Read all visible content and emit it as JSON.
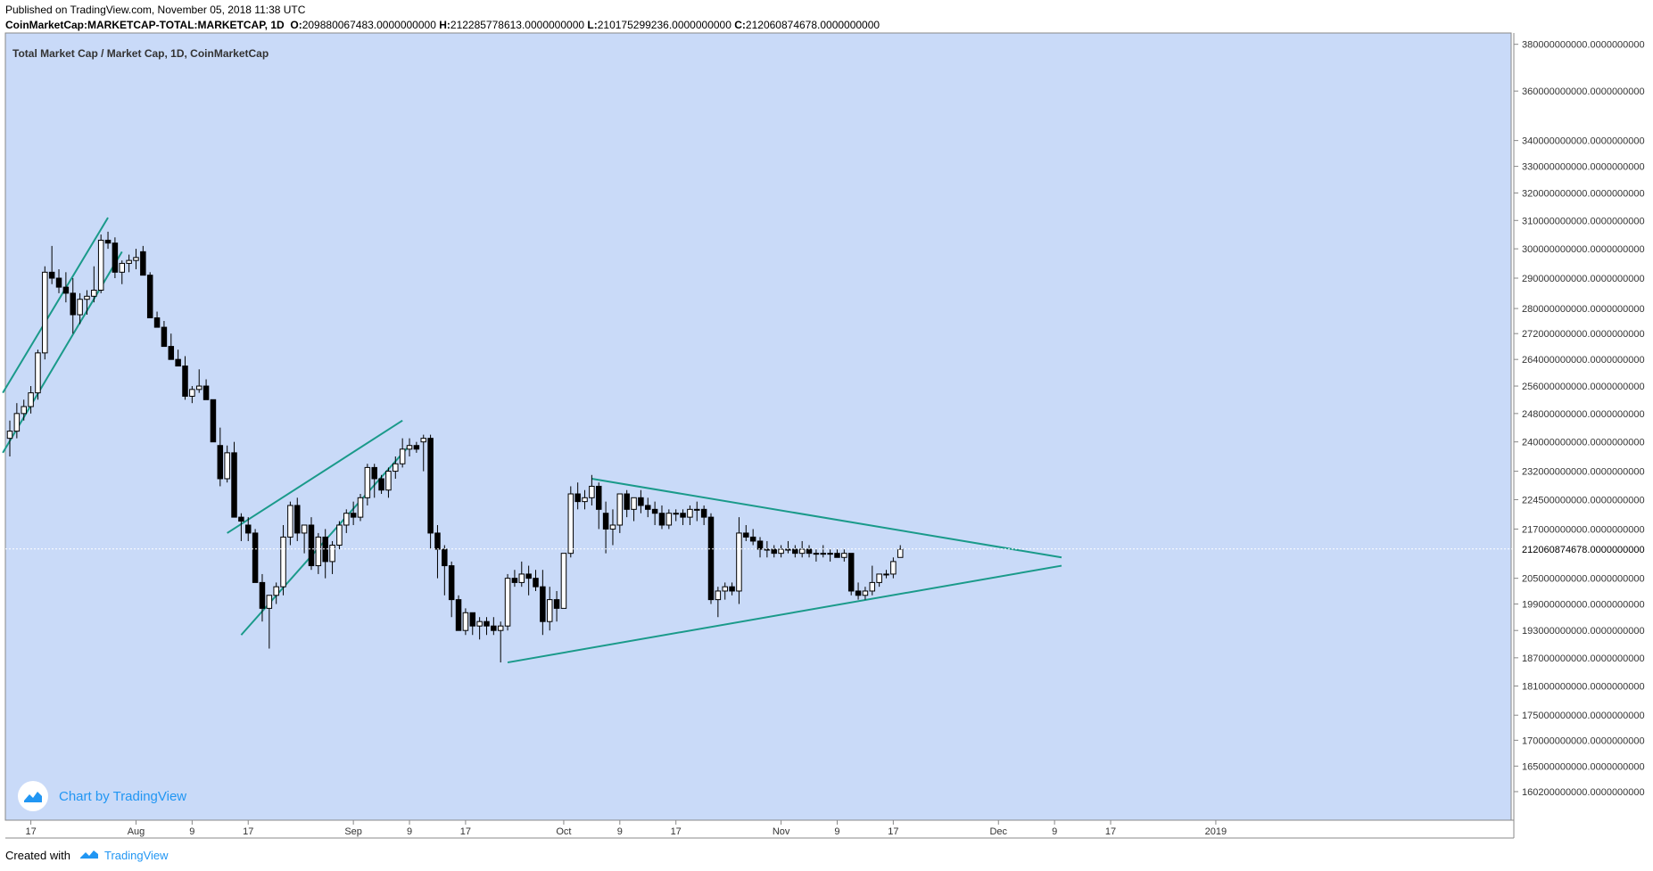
{
  "header": {
    "published": "Published on TradingView.com, November 05, 2018 11:38 UTC",
    "symbol": "CoinMarketCap:MARKETCAP-TOTAL:MARKETCAP, 1D",
    "open_label": "O:",
    "open": "209880067483.0000000000",
    "high_label": "H:",
    "high": "212285778613.0000000000",
    "low_label": "L:",
    "low": "210175299236.0000000000",
    "close_label": "C:",
    "close": "212060874678.0000000000"
  },
  "watermark": {
    "text": "Chart by TradingView",
    "icon": "tradingview-logo-icon"
  },
  "footer": {
    "created_with": "Created with",
    "brand": "TradingView",
    "icon": "tradingview-logo-icon"
  },
  "colors": {
    "background": "#c9daf8",
    "trendline": "#1a9a8a",
    "up_body": "#ffffff",
    "down_body": "#000000",
    "accent": "#2196f3"
  },
  "chart_data": {
    "type": "candlestick",
    "title": "Total Market Cap / Market Cap, 1D, CoinMarketCap",
    "x_labels": [
      "17",
      "Aug",
      "9",
      "17",
      "Sep",
      "9",
      "17",
      "Oct",
      "9",
      "17",
      "Nov",
      "9",
      "17",
      "Dec",
      "9",
      "17",
      "2019"
    ],
    "y_labels": [
      "380000000000.0000000000",
      "360000000000.0000000000",
      "340000000000.0000000000",
      "330000000000.0000000000",
      "320000000000.0000000000",
      "310000000000.0000000000",
      "300000000000.0000000000",
      "290000000000.0000000000",
      "280000000000.0000000000",
      "272000000000.0000000000",
      "264000000000.0000000000",
      "256000000000.0000000000",
      "248000000000.0000000000",
      "240000000000.0000000000",
      "232000000000.0000000000",
      "224500000000.0000000000",
      "217000000000.0000000000",
      "205000000000.0000000000",
      "199000000000.0000000000",
      "193000000000.0000000000",
      "187000000000.0000000000",
      "181000000000.0000000000",
      "175000000000.0000000000",
      "170000000000.0000000000",
      "165000000000.0000000000",
      "160200000000.0000000000"
    ],
    "last_price_label": "212060874678.0000000000",
    "log_scale": true,
    "ylim": [
      155000000000,
      385000000000
    ],
    "candles": [
      [
        241,
        246,
        236,
        243
      ],
      [
        243,
        251,
        241,
        248
      ],
      [
        248,
        252,
        246,
        250
      ],
      [
        250,
        256,
        248,
        254
      ],
      [
        254,
        267,
        252,
        266
      ],
      [
        266,
        294,
        264,
        292
      ],
      [
        292,
        301,
        288,
        290
      ],
      [
        290,
        293,
        285,
        287
      ],
      [
        287,
        292,
        282,
        285
      ],
      [
        285,
        290,
        272,
        278
      ],
      [
        278,
        285,
        275,
        283
      ],
      [
        283,
        286,
        278,
        284
      ],
      [
        284,
        294,
        282,
        286
      ],
      [
        286,
        305,
        285,
        303
      ],
      [
        303,
        306,
        300,
        302
      ],
      [
        302,
        304,
        290,
        292
      ],
      [
        292,
        296,
        288,
        295
      ],
      [
        295,
        298,
        292,
        296
      ],
      [
        296,
        300,
        293,
        297
      ],
      [
        299,
        301,
        292,
        291
      ],
      [
        291,
        292,
        280,
        277
      ],
      [
        277,
        279,
        274,
        274
      ],
      [
        274,
        276,
        268,
        268
      ],
      [
        268,
        272,
        264,
        264
      ],
      [
        264,
        267,
        262,
        262
      ],
      [
        262,
        265,
        252,
        253
      ],
      [
        253,
        256,
        251,
        255
      ],
      [
        255,
        261,
        254,
        256
      ],
      [
        256,
        258,
        252,
        252
      ],
      [
        252,
        252,
        242,
        240
      ],
      [
        239,
        244,
        228,
        230
      ],
      [
        230,
        239,
        229,
        237
      ],
      [
        237,
        240,
        223,
        220
      ],
      [
        220,
        221,
        214,
        219
      ],
      [
        218,
        220,
        214,
        216
      ],
      [
        216,
        217,
        207,
        204
      ],
      [
        204,
        206,
        195,
        198
      ],
      [
        198,
        199,
        189,
        201
      ],
      [
        201,
        204,
        199,
        203
      ],
      [
        203,
        218,
        201,
        215
      ],
      [
        215,
        224,
        213,
        223
      ],
      [
        223,
        225,
        214,
        216
      ],
      [
        216,
        218,
        211,
        218
      ],
      [
        218,
        220,
        207,
        208
      ],
      [
        208,
        216,
        206,
        215
      ],
      [
        215,
        217,
        205,
        209
      ],
      [
        209,
        214,
        206,
        213
      ],
      [
        213,
        219,
        212,
        218
      ],
      [
        218,
        222,
        216,
        221
      ],
      [
        221,
        224,
        218,
        220
      ],
      [
        220,
        226,
        219,
        225
      ],
      [
        225,
        234,
        223,
        233
      ],
      [
        233,
        234,
        225,
        230
      ],
      [
        230,
        231,
        226,
        227
      ],
      [
        227,
        233,
        225,
        232
      ],
      [
        232,
        236,
        230,
        234
      ],
      [
        234,
        241,
        233,
        238
      ],
      [
        238,
        241,
        236,
        239
      ],
      [
        239,
        240,
        237,
        238
      ],
      [
        240,
        242,
        232,
        241
      ],
      [
        241,
        242,
        212,
        216
      ],
      [
        216,
        218,
        205,
        212
      ],
      [
        212,
        213,
        201,
        208
      ],
      [
        208,
        209,
        196,
        200
      ],
      [
        200,
        201,
        193,
        193
      ],
      [
        193,
        198,
        192,
        197
      ],
      [
        197,
        197,
        192,
        194
      ],
      [
        194,
        196,
        191,
        195
      ],
      [
        195,
        196,
        192,
        194
      ],
      [
        194,
        196,
        192,
        193
      ],
      [
        193,
        195,
        186,
        194
      ],
      [
        194,
        206,
        193,
        205
      ],
      [
        205,
        207,
        203,
        204
      ],
      [
        204,
        209,
        203,
        206
      ],
      [
        206,
        208,
        201,
        205
      ],
      [
        205,
        207,
        202,
        203
      ],
      [
        203,
        207,
        192,
        195
      ],
      [
        195,
        203,
        193,
        200
      ],
      [
        200,
        202,
        195,
        198
      ],
      [
        198,
        211,
        198,
        211
      ],
      [
        211,
        228,
        210,
        226
      ],
      [
        226,
        229,
        222,
        224
      ],
      [
        224,
        227,
        222,
        225
      ],
      [
        225,
        231,
        223,
        228
      ],
      [
        228,
        229,
        217,
        222
      ],
      [
        221,
        224,
        211,
        217
      ],
      [
        217,
        222,
        213,
        218
      ],
      [
        218,
        226,
        216,
        226
      ],
      [
        226,
        227,
        220,
        222
      ],
      [
        222,
        225,
        219,
        225
      ],
      [
        225,
        227,
        221,
        223
      ],
      [
        223,
        225,
        220,
        222
      ],
      [
        222,
        224,
        218,
        221
      ],
      [
        221,
        223,
        217,
        218
      ],
      [
        218,
        222,
        217,
        221
      ],
      [
        221,
        222,
        219,
        221
      ],
      [
        221,
        222,
        218,
        220
      ],
      [
        220,
        223,
        218,
        222
      ],
      [
        222,
        224,
        219,
        222
      ],
      [
        222,
        223,
        218,
        220
      ],
      [
        220,
        221,
        199,
        200
      ],
      [
        200,
        203,
        196,
        202
      ],
      [
        202,
        204,
        200,
        203
      ],
      [
        203,
        204,
        201,
        202
      ],
      [
        202,
        220,
        199,
        216
      ],
      [
        216,
        218,
        214,
        215
      ],
      [
        215,
        217,
        213,
        214
      ],
      [
        214,
        215,
        210,
        212
      ],
      [
        212,
        214,
        210,
        212
      ],
      [
        212,
        213,
        210,
        211
      ],
      [
        211,
        213,
        210,
        212
      ],
      [
        212,
        214,
        211,
        212
      ],
      [
        212,
        213,
        210,
        211
      ],
      [
        211,
        214,
        210,
        212
      ],
      [
        212,
        213,
        210,
        211
      ],
      [
        211,
        212,
        209,
        211
      ],
      [
        211,
        213,
        210,
        211
      ],
      [
        211,
        212,
        209,
        211
      ],
      [
        211,
        212,
        210,
        210
      ],
      [
        210,
        212,
        209,
        211
      ],
      [
        211,
        211,
        201,
        202
      ],
      [
        202,
        204,
        200,
        201
      ],
      [
        201,
        203,
        200,
        202
      ],
      [
        202,
        208,
        201,
        204
      ],
      [
        204,
        206,
        203,
        206
      ],
      [
        206,
        207,
        205,
        206
      ],
      [
        206,
        210,
        205,
        209
      ],
      [
        210,
        213,
        210,
        212
      ]
    ],
    "trendlines": [
      {
        "from": [
          -1,
          254
        ],
        "to": [
          14,
          311
        ]
      },
      {
        "from": [
          -1,
          237
        ],
        "to": [
          16,
          299
        ]
      },
      {
        "from": [
          31,
          216
        ],
        "to": [
          56,
          246
        ]
      },
      {
        "from": [
          33,
          192
        ],
        "to": [
          57,
          239
        ]
      },
      {
        "from": [
          71,
          186
        ],
        "to": [
          150,
          208
        ]
      },
      {
        "from": [
          83,
          230
        ],
        "to": [
          150,
          210
        ]
      }
    ]
  }
}
